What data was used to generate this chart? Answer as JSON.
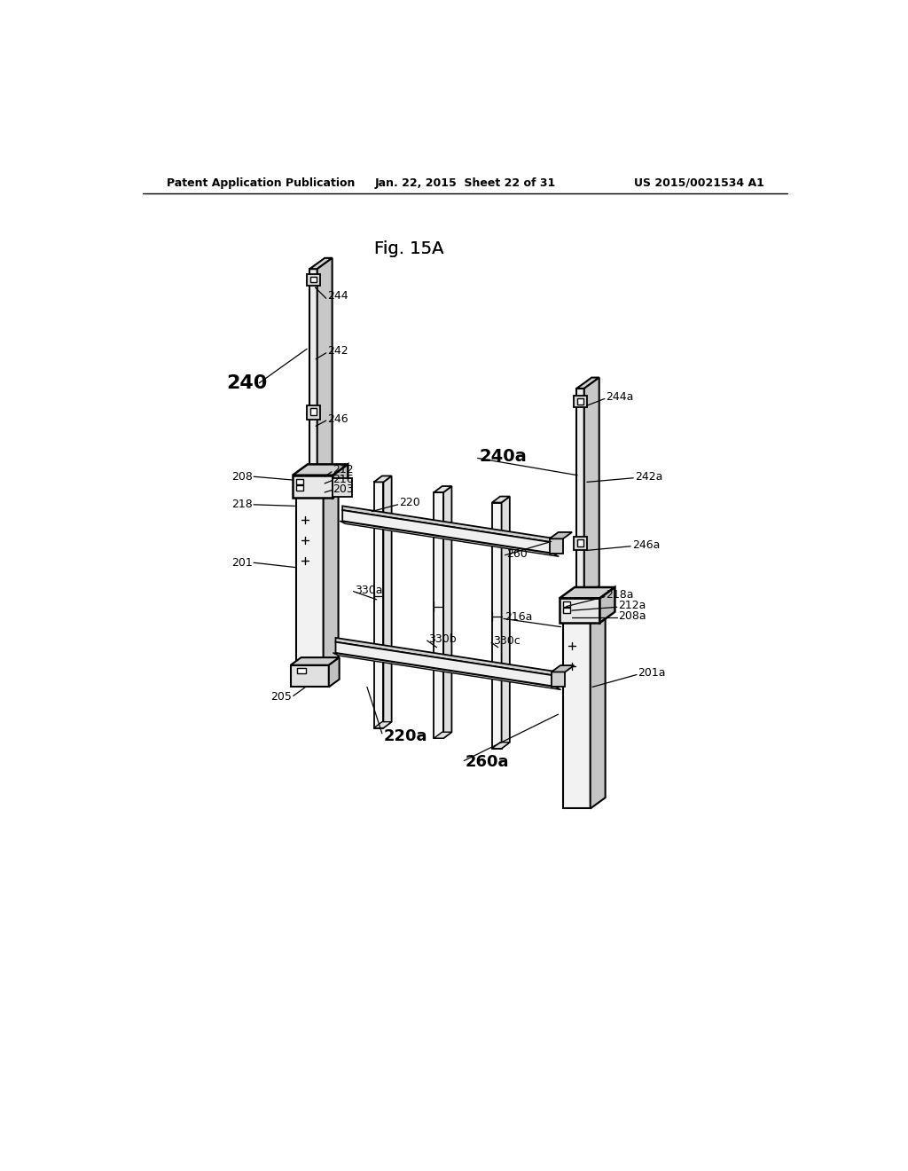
{
  "bg_color": "#ffffff",
  "header_left": "Patent Application Publication",
  "header_mid": "Jan. 22, 2015  Sheet 22 of 31",
  "header_right": "US 2015/0021534 A1",
  "figure_title": "Fig. 15A"
}
